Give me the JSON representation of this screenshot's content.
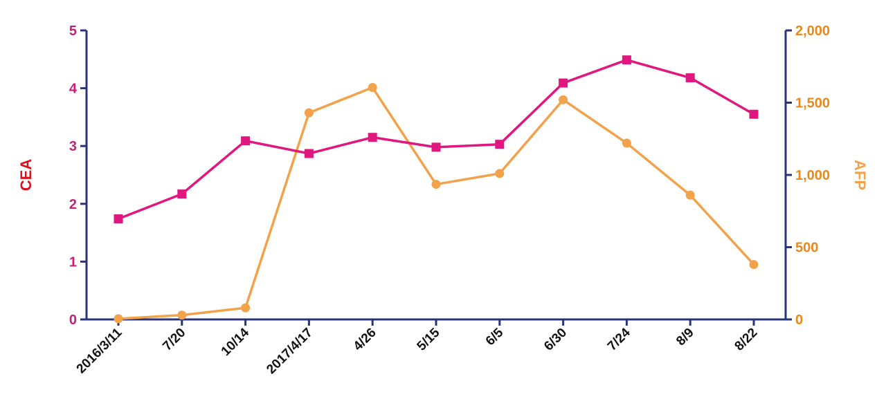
{
  "chart_data": {
    "type": "line",
    "categories": [
      "2016/3/11",
      "7/20",
      "10/14",
      "2017/4/17",
      "4/26",
      "5/15",
      "6/5",
      "6/30",
      "7/24",
      "8/9",
      "8/22"
    ],
    "series": [
      {
        "name": "CEA",
        "axis": "left",
        "marker": "square",
        "color": "#e0177f",
        "values": [
          1.74,
          2.17,
          3.09,
          2.87,
          3.15,
          2.98,
          3.03,
          4.09,
          4.49,
          4.18,
          3.55
        ]
      },
      {
        "name": "AFP",
        "axis": "right",
        "marker": "circle",
        "color": "#f2a24a",
        "values": [
          5,
          30,
          80,
          1430,
          1605,
          935,
          1010,
          1520,
          1220,
          860,
          380
        ]
      }
    ],
    "ylabel": "CEA",
    "y2label": "AFP",
    "ylim": [
      0,
      5
    ],
    "y2lim": [
      0,
      2000
    ],
    "yticks": [
      "0",
      "1",
      "2",
      "3",
      "4",
      "5"
    ],
    "y2ticks": [
      "0",
      "500",
      "1,000",
      "1,500",
      "2,000"
    ],
    "colors": {
      "axis": "#2b3377",
      "left_ticks": "#c81d7a",
      "left_title": "#d6121f",
      "right_ticks": "#e7891c",
      "right_title": "#f2a24a",
      "x_ticks": "#111111"
    },
    "grid": false,
    "legend": "none"
  }
}
